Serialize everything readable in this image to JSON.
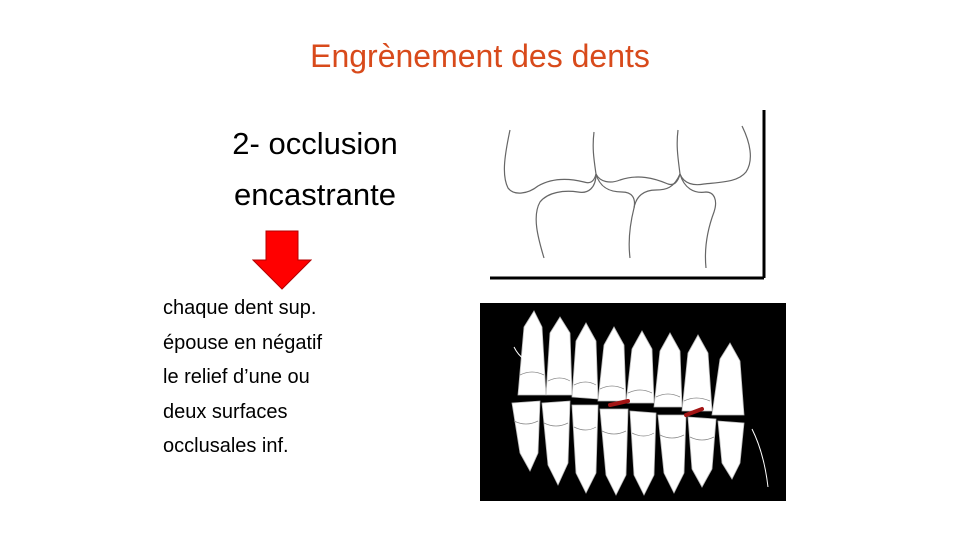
{
  "slide": {
    "title": "Engrènement des dents",
    "heading_line1": "2-  occlusion",
    "heading_line2": "encastrante",
    "body_lines": [
      "chaque dent sup.",
      "épouse en négatif",
      "le relief d’une ou",
      "deux surfaces",
      "occlusales inf."
    ]
  },
  "colors": {
    "title": "#d84a1b",
    "arrow": "#ff0000",
    "xray_background": "#000000",
    "contact_marks": "#a31515"
  },
  "icons": {
    "arrow": "arrow-down-icon"
  }
}
